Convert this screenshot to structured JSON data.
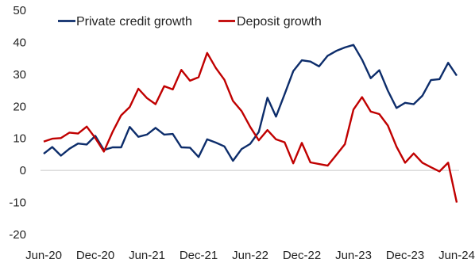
{
  "chart_data": {
    "type": "line",
    "title": "",
    "xlabel": "",
    "ylabel": "",
    "x": [
      "2020-06",
      "2020-07",
      "2020-08",
      "2020-09",
      "2020-10",
      "2020-11",
      "2020-12",
      "2021-01",
      "2021-02",
      "2021-03",
      "2021-04",
      "2021-05",
      "2021-06",
      "2021-07",
      "2021-08",
      "2021-09",
      "2021-10",
      "2021-11",
      "2021-12",
      "2022-01",
      "2022-02",
      "2022-03",
      "2022-04",
      "2022-05",
      "2022-06",
      "2022-07",
      "2022-08",
      "2022-09",
      "2022-10",
      "2022-11",
      "2022-12",
      "2023-01",
      "2023-02",
      "2023-03",
      "2023-04",
      "2023-05",
      "2023-06",
      "2023-07",
      "2023-08",
      "2023-09",
      "2023-10",
      "2023-11",
      "2023-12",
      "2024-01",
      "2024-02",
      "2024-03",
      "2024-04",
      "2024-05",
      "2024-06"
    ],
    "x_tick_labels": [
      "Jun-20",
      "Dec-20",
      "Jun-21",
      "Dec-21",
      "Jun-22",
      "Dec-22",
      "Jun-23",
      "Dec-23",
      "Jun-24"
    ],
    "y_ticks": [
      -20,
      -10,
      0,
      10,
      20,
      30,
      40,
      50
    ],
    "ylim": [
      -20,
      50
    ],
    "grid": false,
    "legend_position": "top",
    "series": [
      {
        "name": "Private credit growth",
        "color": "#0d2d6b",
        "values": [
          5.2,
          7.3,
          4.6,
          6.8,
          8.4,
          8.1,
          10.8,
          6.4,
          7.2,
          7.2,
          13.6,
          10.5,
          11.2,
          13.3,
          11.2,
          11.4,
          7.2,
          7.1,
          4.2,
          9.7,
          8.7,
          7.5,
          3.0,
          6.7,
          8.3,
          12.0,
          22.7,
          16.8,
          23.8,
          31.0,
          34.4,
          34.0,
          32.5,
          35.8,
          37.3,
          38.4,
          39.2,
          34.6,
          28.8,
          31.3,
          24.9,
          19.5,
          21.1,
          20.7,
          23.3,
          28.2,
          28.5,
          33.6,
          29.6
        ]
      },
      {
        "name": "Deposit growth",
        "color": "#c00000",
        "values": [
          9.0,
          9.9,
          10.1,
          11.8,
          11.5,
          13.7,
          10.1,
          5.9,
          12.0,
          17.2,
          19.8,
          25.5,
          22.6,
          20.7,
          26.3,
          25.3,
          31.4,
          28.0,
          29.1,
          36.7,
          32.0,
          28.3,
          21.7,
          18.5,
          13.6,
          9.4,
          12.6,
          9.7,
          8.8,
          2.2,
          8.6,
          2.5,
          2.0,
          1.5,
          4.8,
          8.2,
          19.0,
          22.9,
          18.4,
          17.6,
          14.0,
          7.4,
          2.4,
          5.3,
          2.4,
          1.0,
          -0.3,
          2.4,
          -10.0
        ]
      }
    ]
  }
}
